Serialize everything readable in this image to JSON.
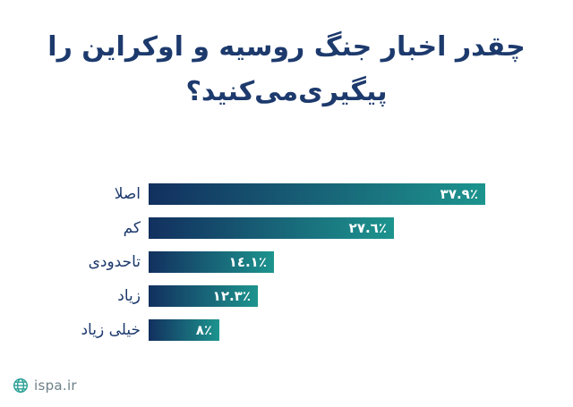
{
  "chart_data": {
    "type": "bar",
    "orientation": "horizontal",
    "title": "چقدر اخبار جنگ روسیه و اوکراین را پیگیری‌می‌کنید؟",
    "title_lines": [
      "چقدر اخبار جنگ روسیه و اوکراین را",
      "پیگیری‌می‌کنید؟"
    ],
    "categories": [
      "اصلا",
      "کم",
      "تاحدودی",
      "زیاد",
      "خیلی زیاد"
    ],
    "values": [
      37.9,
      27.6,
      14.1,
      12.3,
      8
    ],
    "display_values": [
      "٣٧.٩٪",
      "٢٧.٦٪",
      "١٤.١٪",
      "١٢.٣٪",
      "٨٪"
    ],
    "value_label_position": "inside-end",
    "xlabel": "",
    "ylabel": "",
    "xlim": [
      0,
      40
    ],
    "grid": false,
    "legend": false,
    "bar_gradient": [
      "#12305f",
      "#1d948e"
    ],
    "title_color": "#1d3a6d",
    "value_label_color": "#ffffff"
  },
  "footer": {
    "site": "ispa.ir",
    "icon": "globe-icon",
    "icon_color": "#2aa095"
  }
}
